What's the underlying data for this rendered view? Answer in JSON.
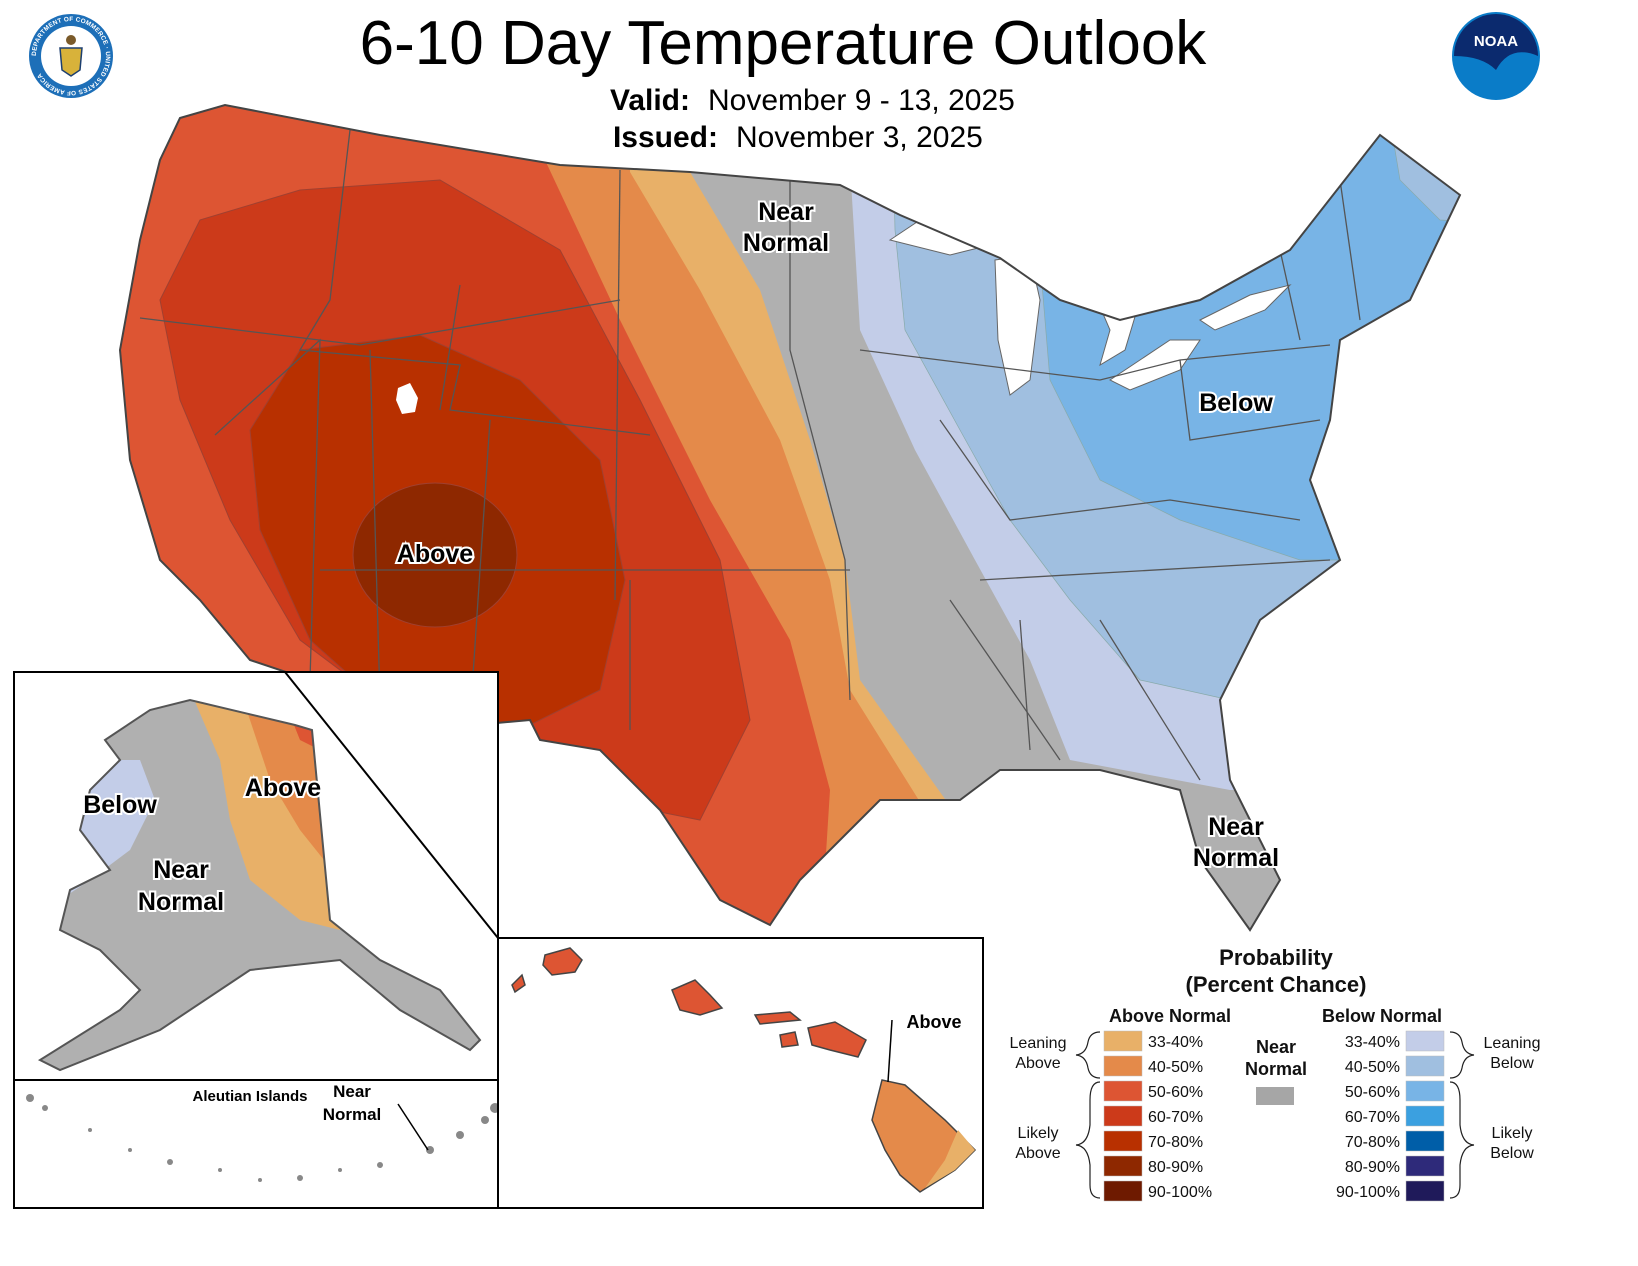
{
  "header": {
    "title": "6-10 Day Temperature Outlook",
    "valid_label": "Valid:",
    "valid_value": "November 9 - 13, 2025",
    "issued_label": "Issued:",
    "issued_value": "November 3, 2025",
    "left_logo": "Department of Commerce seal",
    "left_logo_text": "DEPARTMENT OF COMMERCE · UNITED STATES OF AMERICA",
    "right_logo": "NOAA logo",
    "right_logo_text": "NOAA"
  },
  "map": {
    "conus_labels": {
      "near_normal_north_1": "Near",
      "near_normal_north_2": "Normal",
      "above": "Above",
      "below": "Below",
      "near_normal_fl_1": "Near",
      "near_normal_fl_2": "Normal"
    },
    "alaska_labels": {
      "below": "Below",
      "above": "Above",
      "near_1": "Near",
      "near_2": "Normal"
    },
    "aleutian_labels": {
      "region": "Aleutian Islands",
      "near_1": "Near",
      "near_2": "Normal"
    },
    "hawaii_labels": {
      "above": "Above"
    }
  },
  "legend": {
    "title_1": "Probability",
    "title_2": "(Percent Chance)",
    "above_header": "Above Normal",
    "below_header": "Below Normal",
    "near_1": "Near",
    "near_2": "Normal",
    "near_color": "#a6a6a6",
    "leaning_above_1": "Leaning",
    "leaning_above_2": "Above",
    "likely_above_1": "Likely",
    "likely_above_2": "Above",
    "leaning_below_1": "Leaning",
    "leaning_below_2": "Below",
    "likely_below_1": "Likely",
    "likely_below_2": "Below",
    "above": [
      {
        "range": "33-40%",
        "color": "#e8b068"
      },
      {
        "range": "40-50%",
        "color": "#e48a4a"
      },
      {
        "range": "50-60%",
        "color": "#dd5533"
      },
      {
        "range": "60-70%",
        "color": "#cc3a1a"
      },
      {
        "range": "70-80%",
        "color": "#b83000"
      },
      {
        "range": "80-90%",
        "color": "#8e2800"
      },
      {
        "range": "90-100%",
        "color": "#6e1a00"
      }
    ],
    "below": [
      {
        "range": "33-40%",
        "color": "#c3cde8"
      },
      {
        "range": "40-50%",
        "color": "#a0bfe0"
      },
      {
        "range": "50-60%",
        "color": "#78b4e6"
      },
      {
        "range": "60-70%",
        "color": "#3ba0e0"
      },
      {
        "range": "70-80%",
        "color": "#005ea8"
      },
      {
        "range": "80-90%",
        "color": "#2e2a7a"
      },
      {
        "range": "90-100%",
        "color": "#1f1a5a"
      }
    ]
  }
}
